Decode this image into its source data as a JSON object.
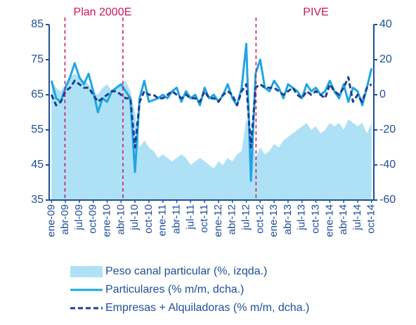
{
  "chart_data": {
    "type": "area-line",
    "categories": [
      "ene-09",
      null,
      null,
      "abr-09",
      null,
      null,
      "jul-09",
      null,
      null,
      "oct-09",
      null,
      null,
      "ene-10",
      null,
      null,
      "abr-10",
      null,
      null,
      "jul-10",
      null,
      null,
      "oct-10",
      null,
      null,
      "ene-11",
      null,
      null,
      "abr-11",
      null,
      null,
      "jul-11",
      null,
      null,
      "oct-11",
      null,
      null,
      "ene-12",
      null,
      null,
      "abr-12",
      null,
      null,
      "jul-12",
      null,
      null,
      "oct-12",
      null,
      null,
      "ene-13",
      null,
      null,
      "abr-13",
      null,
      null,
      "jul-13",
      null,
      null,
      "oct-13",
      null,
      null,
      "ene-14",
      null,
      null,
      "abr-14",
      null,
      null,
      "jul-14",
      null,
      null,
      "oct-14"
    ],
    "series": [
      {
        "name": "Peso canal particular (%, izqda.)",
        "kind": "area",
        "axis": "y",
        "color": "#aee1f5",
        "values": [
          69,
          67,
          66,
          68,
          70,
          71,
          70,
          69,
          68,
          66,
          65,
          67,
          68,
          66,
          67,
          68,
          69,
          66,
          60,
          50,
          52,
          50,
          49,
          47,
          48,
          47,
          46,
          47,
          48,
          47,
          45,
          46,
          47,
          46,
          45,
          44,
          46,
          45,
          47,
          46,
          48,
          49,
          58,
          55,
          47,
          50,
          48,
          49,
          51,
          50,
          52,
          53,
          54,
          55,
          56,
          57,
          55,
          56,
          54,
          55,
          57,
          56,
          57,
          55,
          58,
          57,
          56,
          57,
          54,
          57
        ]
      },
      {
        "name": "Particulares (% m/m, dcha.)",
        "kind": "line",
        "dash": false,
        "axis": "y2",
        "color": "#1ea5e3",
        "values": [
          8,
          -2,
          -4,
          4,
          10,
          18,
          10,
          6,
          12,
          2,
          -10,
          -2,
          -4,
          2,
          4,
          6,
          2,
          -2,
          -44,
          -2,
          8,
          -4,
          -3,
          -2,
          0,
          -2,
          2,
          4,
          -4,
          2,
          -2,
          0,
          -6,
          4,
          -2,
          0,
          -4,
          0,
          6,
          -2,
          -6,
          4,
          29,
          -49,
          12,
          20,
          4,
          2,
          8,
          4,
          -2,
          6,
          4,
          2,
          -2,
          6,
          2,
          4,
          0,
          2,
          8,
          2,
          -2,
          6,
          -4,
          4,
          2,
          -6,
          4,
          15
        ]
      },
      {
        "name": "Empresas + Alquiladoras (% m/m, dcha.)",
        "kind": "line",
        "dash": true,
        "axis": "y2",
        "color": "#1b3f8f",
        "values": [
          0,
          -6,
          -4,
          2,
          4,
          8,
          6,
          4,
          4,
          0,
          -4,
          -2,
          0,
          2,
          2,
          0,
          -2,
          -2,
          -30,
          -4,
          2,
          0,
          0,
          -2,
          -2,
          0,
          2,
          0,
          -2,
          0,
          -2,
          -2,
          -4,
          2,
          -2,
          -2,
          -4,
          0,
          2,
          0,
          -6,
          2,
          6,
          -30,
          4,
          6,
          4,
          4,
          4,
          2,
          0,
          2,
          4,
          0,
          -2,
          2,
          0,
          2,
          0,
          -2,
          6,
          2,
          0,
          4,
          10,
          -4,
          0,
          -4,
          4,
          6
        ]
      }
    ],
    "ylim": [
      35,
      85
    ],
    "yticks": [
      35,
      45,
      55,
      65,
      75,
      85
    ],
    "y2lim": [
      -60,
      40
    ],
    "y2ticks": [
      -60,
      -40,
      -20,
      0,
      20,
      40
    ],
    "vlines": [
      2.9,
      15.4,
      44.1
    ],
    "annotations": [
      {
        "text": "Plan 2000E",
        "x": 11
      },
      {
        "text": "PIVE",
        "x": 57
      }
    ],
    "vline_color": "#c8175d",
    "axis_color": "#1f4f98"
  }
}
